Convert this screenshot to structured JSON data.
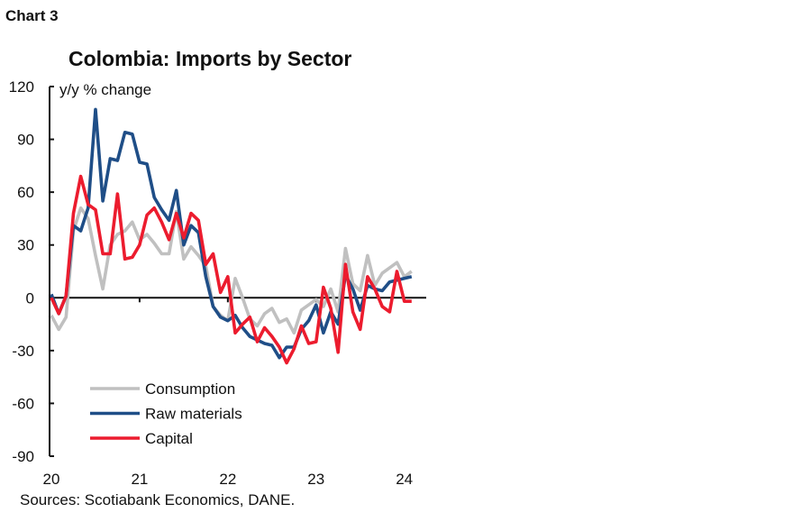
{
  "chart_label": "Chart 3",
  "source": "Sources: Scotiabank Economics, DANE.",
  "chart_data": {
    "type": "line",
    "title": "Colombia: Imports by Sector",
    "ylabel": "y/y % change",
    "ylim": [
      -90,
      120
    ],
    "yticks": [
      120,
      90,
      60,
      30,
      0,
      -30,
      -60,
      -90
    ],
    "xtick_labels": [
      "20",
      "21",
      "22",
      "23",
      "24"
    ],
    "x_start": "2020-01",
    "x_frequency": "monthly",
    "grid": false,
    "legend_position": "bottom-left",
    "series": [
      {
        "name": "Consumption",
        "color": "#c0c0c0",
        "values": [
          -10,
          -18,
          -11,
          38,
          51,
          45,
          24,
          5,
          30,
          36,
          38,
          43,
          33,
          36,
          31,
          25,
          25,
          49,
          22,
          29,
          24,
          18,
          -5,
          -10,
          -13,
          11,
          0,
          -12,
          -16,
          -9,
          -6,
          -14,
          -12,
          -20,
          -7,
          -4,
          -1,
          -5,
          5,
          -8,
          28,
          8,
          4,
          24,
          7,
          14,
          17,
          20,
          12,
          15
        ]
      },
      {
        "name": "Raw materials",
        "color": "#1f4e87",
        "values": [
          2,
          -9,
          1,
          41,
          38,
          51,
          107,
          55,
          79,
          78,
          94,
          93,
          77,
          76,
          57,
          50,
          44,
          61,
          30,
          41,
          37,
          12,
          -5,
          -11,
          -13,
          -10,
          -17,
          -22,
          -24,
          -26,
          -27,
          -34,
          -28,
          -28,
          -18,
          -13,
          -4,
          -20,
          -8,
          -15,
          13,
          5,
          -7,
          7,
          5,
          4,
          9,
          10,
          11,
          12
        ]
      },
      {
        "name": "Capital",
        "color": "#ec1c2e",
        "values": [
          0,
          -9,
          1,
          48,
          69,
          53,
          50,
          25,
          25,
          59,
          22,
          23,
          30,
          47,
          51,
          43,
          33,
          48,
          34,
          48,
          44,
          19,
          25,
          3,
          12,
          -20,
          -15,
          -11,
          -25,
          -17,
          -22,
          -28,
          -37,
          -29,
          -16,
          -26,
          -25,
          6,
          -6,
          -31,
          19,
          -8,
          -18,
          12,
          5,
          -5,
          -8,
          15,
          -2,
          -2
        ]
      }
    ]
  }
}
